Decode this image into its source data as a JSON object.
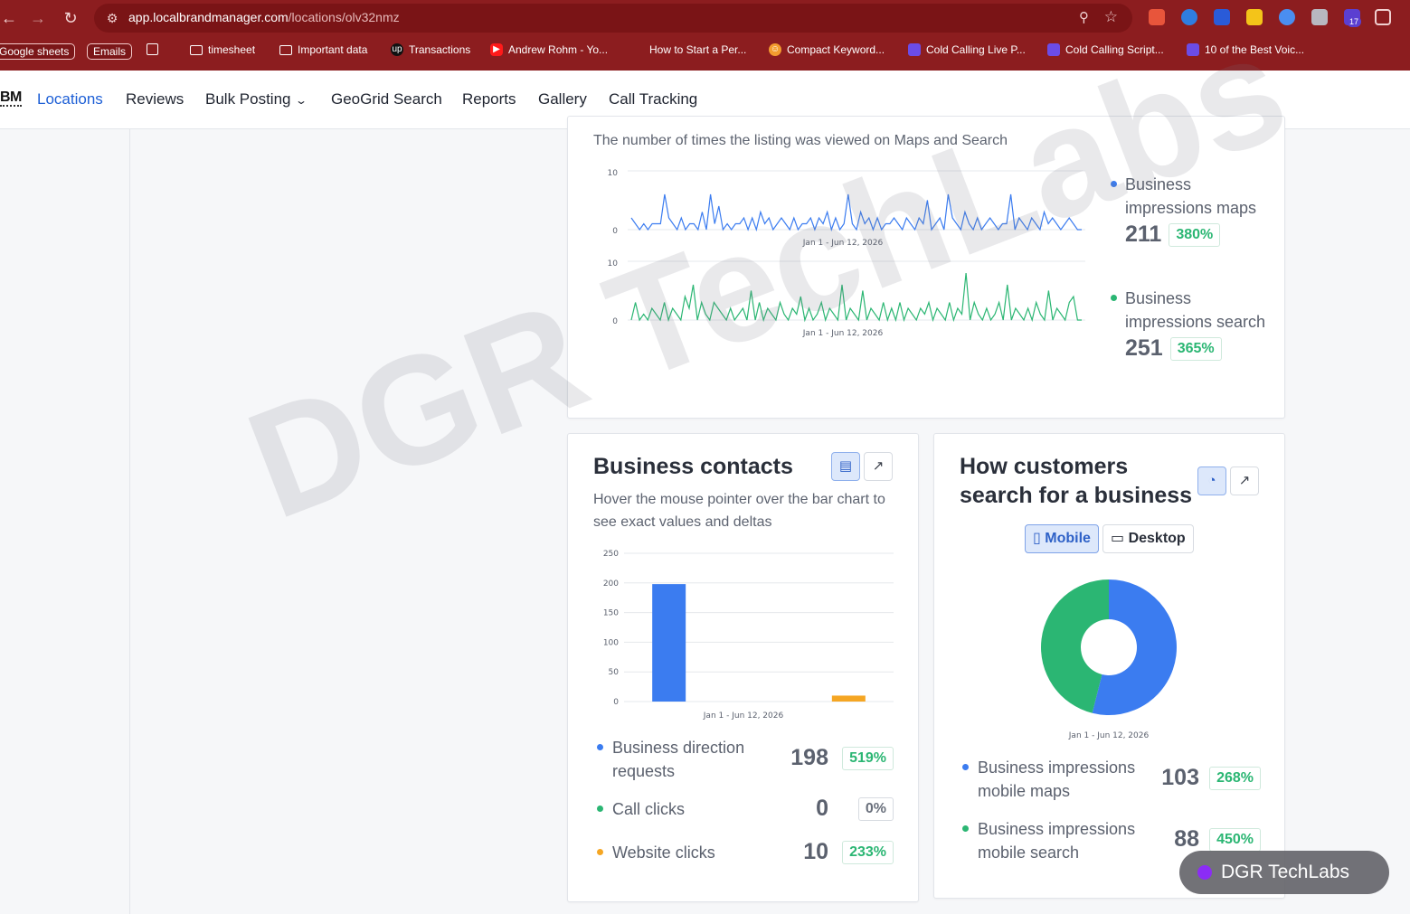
{
  "browser": {
    "url_host": "app.localbrandmanager.com",
    "url_path": "/locations/olv32nmz",
    "extension_badge": "17",
    "bookmarks": [
      {
        "label": "Google sheets",
        "style": "chip"
      },
      {
        "label": "Emails",
        "style": "chip"
      },
      {
        "label": "timesheet",
        "icon": "folder-icon"
      },
      {
        "label": "Important data",
        "icon": "folder-icon"
      },
      {
        "label": "Transactions",
        "icon": "upwork-icon"
      },
      {
        "label": "Andrew Rohm - Yo...",
        "icon": "youtube-icon"
      },
      {
        "label": "How to Start a Per...",
        "icon": "none"
      },
      {
        "label": "Compact Keyword...",
        "icon": "smile-icon"
      },
      {
        "label": "Cold Calling Live P...",
        "icon": "puzzle-icon"
      },
      {
        "label": "Cold Calling Script...",
        "icon": "puzzle-icon"
      },
      {
        "label": "10 of the Best Voic...",
        "icon": "puzzle-icon"
      }
    ]
  },
  "nav": {
    "brand": "BM",
    "items": [
      "Locations",
      "Reviews",
      "Bulk Posting",
      "GeoGrid Search",
      "Reports",
      "Gallery",
      "Call Tracking"
    ],
    "active": "Locations"
  },
  "impressions_card": {
    "subtitle": "The number of times the listing was viewed on Maps and Search",
    "date_range": "Jan 1 - Jun 12, 2026",
    "legend": [
      {
        "label": "Business impressions maps",
        "value": "211",
        "delta": "380%",
        "color": "#3b7cf0"
      },
      {
        "label": "Business impressions search",
        "value": "251",
        "delta": "365%",
        "color": "#2bb673"
      }
    ]
  },
  "contacts_card": {
    "title": "Business contacts",
    "subtitle": "Hover the mouse pointer over the bar chart to see exact values and deltas",
    "date_range": "Jan 1 - Jun 12, 2026",
    "legend": [
      {
        "label": "Business direction requests",
        "value": "198",
        "delta": "519%",
        "color": "#3b7cf0"
      },
      {
        "label": "Call clicks",
        "value": "0",
        "delta": "0%",
        "color": "#2bb673"
      },
      {
        "label": "Website clicks",
        "value": "10",
        "delta": "233%",
        "color": "#f5a623"
      }
    ]
  },
  "search_card": {
    "title": "How customers search for a business",
    "segments": [
      "Mobile",
      "Desktop"
    ],
    "active_segment": "Mobile",
    "date_range": "Jan 1 - Jun 12, 2026",
    "legend": [
      {
        "label": "Business impressions mobile maps",
        "value": "103",
        "delta": "268%",
        "color": "#3b7cf0"
      },
      {
        "label": "Business impressions mobile search",
        "value": "88",
        "delta": "450%",
        "color": "#2bb673"
      }
    ]
  },
  "watermark": {
    "text": "DGR TechLabs",
    "pill": "DGR TechLabs"
  },
  "chart_data": [
    {
      "type": "line",
      "series": [
        {
          "name": "Business impressions maps",
          "values": [
            2,
            1,
            0,
            1,
            0,
            1,
            1,
            1,
            6,
            2,
            1,
            0,
            2,
            0,
            1,
            1,
            0,
            3,
            0,
            6,
            1,
            4,
            0,
            1,
            0,
            1,
            1,
            2,
            0,
            2,
            0,
            3,
            1,
            2,
            0,
            1,
            2,
            1,
            0,
            2,
            0,
            1,
            1,
            2,
            0,
            2,
            1,
            3,
            0,
            2,
            0,
            1,
            6,
            1,
            0,
            3,
            1,
            2,
            0,
            2,
            0,
            1,
            1,
            2,
            1,
            0,
            2,
            1,
            0,
            2,
            1,
            5,
            0,
            1,
            2,
            0,
            6,
            2,
            1,
            0,
            3,
            1,
            0,
            2,
            0,
            1,
            2,
            1,
            0,
            1,
            1,
            6,
            0,
            2,
            1,
            0,
            2,
            1,
            0,
            3,
            1,
            2,
            1,
            0,
            1,
            2,
            1,
            0,
            0
          ]
        }
      ],
      "xlabel": "Jan 1 - Jun 12, 2026",
      "yticks": [
        0,
        10
      ],
      "ylim": [
        0,
        10
      ]
    },
    {
      "type": "line",
      "series": [
        {
          "name": "Business impressions search",
          "values": [
            0,
            3,
            0,
            1,
            0,
            2,
            1,
            0,
            3,
            0,
            2,
            1,
            0,
            4,
            2,
            6,
            0,
            3,
            1,
            0,
            3,
            2,
            1,
            0,
            2,
            0,
            1,
            2,
            0,
            5,
            0,
            3,
            0,
            2,
            1,
            0,
            3,
            1,
            0,
            2,
            1,
            4,
            0,
            2,
            0,
            1,
            3,
            0,
            2,
            1,
            0,
            6,
            0,
            2,
            1,
            0,
            5,
            0,
            2,
            1,
            0,
            3,
            0,
            2,
            0,
            3,
            0,
            2,
            1,
            0,
            2,
            1,
            3,
            0,
            2,
            1,
            0,
            3,
            0,
            2,
            1,
            8,
            0,
            3,
            1,
            0,
            2,
            0,
            1,
            3,
            0,
            6,
            0,
            2,
            1,
            0,
            2,
            0,
            3,
            1,
            0,
            5,
            0,
            2,
            1,
            0,
            3,
            4,
            0,
            0
          ]
        }
      ],
      "xlabel": "Jan 1 - Jun 12, 2026",
      "yticks": [
        0,
        10
      ],
      "ylim": [
        0,
        10
      ]
    },
    {
      "type": "bar",
      "categories": [
        "Business direction requests",
        "Call clicks",
        "Website clicks"
      ],
      "values": [
        198,
        0,
        10
      ],
      "colors": [
        "#3b7cf0",
        "#2bb673",
        "#f5a623"
      ],
      "xlabel": "Jan 1 - Jun 12, 2026",
      "yticks": [
        0,
        50,
        100,
        150,
        200,
        250
      ],
      "ylim": [
        0,
        250
      ]
    },
    {
      "type": "pie",
      "categories": [
        "Business impressions mobile maps",
        "Business impressions mobile search"
      ],
      "values": [
        103,
        88
      ],
      "colors": [
        "#3b7cf0",
        "#2bb673"
      ],
      "xlabel": "Jan 1 - Jun 12, 2026"
    }
  ]
}
